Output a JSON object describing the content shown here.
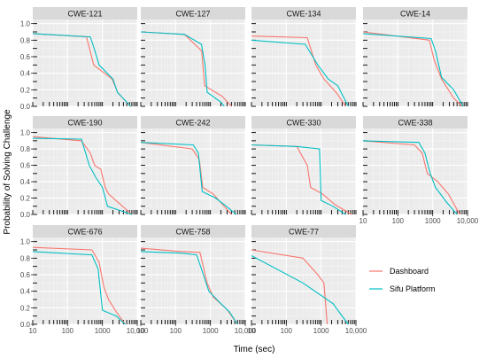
{
  "chart_data": {
    "type": "line",
    "xlabel": "Time (sec)",
    "ylabel": "Probability of Solving Challenge",
    "x_scale": "log",
    "xlim": [
      10,
      10000
    ],
    "ylim": [
      0,
      1.05
    ],
    "x_ticks": [
      "10",
      "100",
      "1000",
      "10,000"
    ],
    "y_ticks": [
      "0.0",
      "0.2",
      "0.4",
      "0.6",
      "0.8",
      "1.0"
    ],
    "grid": true,
    "legend_position": "right",
    "colors": {
      "Dashboard": "#F8766D",
      "Sifu Platform": "#00BFC4",
      "panel_bg": "#EBEBEB",
      "strip_bg": "#D9D9D9"
    },
    "series_names": [
      "Dashboard",
      "Sifu Platform"
    ],
    "panels": [
      {
        "title": "CWE-121",
        "dashboard": [
          [
            10,
            0.88
          ],
          [
            350,
            0.84
          ],
          [
            560,
            0.5
          ],
          [
            1900,
            0.33
          ],
          [
            2800,
            0.16
          ],
          [
            6500,
            0.0
          ]
        ],
        "sifu": [
          [
            10,
            0.88
          ],
          [
            450,
            0.84
          ],
          [
            600,
            0.68
          ],
          [
            800,
            0.5
          ],
          [
            2000,
            0.33
          ],
          [
            2700,
            0.17
          ],
          [
            6500,
            0.0
          ]
        ]
      },
      {
        "title": "CWE-127",
        "dashboard": [
          [
            10,
            0.9
          ],
          [
            180,
            0.87
          ],
          [
            560,
            0.67
          ],
          [
            680,
            0.25
          ],
          [
            2200,
            0.12
          ],
          [
            4000,
            0.0
          ]
        ],
        "sifu": [
          [
            10,
            0.9
          ],
          [
            180,
            0.87
          ],
          [
            550,
            0.75
          ],
          [
            700,
            0.5
          ],
          [
            800,
            0.17
          ],
          [
            2000,
            0.05
          ],
          [
            2500,
            0.0
          ]
        ]
      },
      {
        "title": "CWE-134",
        "dashboard": [
          [
            10,
            0.85
          ],
          [
            400,
            0.83
          ],
          [
            700,
            0.5
          ],
          [
            1200,
            0.33
          ],
          [
            2800,
            0.16
          ],
          [
            5000,
            0.0
          ]
        ],
        "sifu": [
          [
            10,
            0.8
          ],
          [
            350,
            0.75
          ],
          [
            800,
            0.5
          ],
          [
            1600,
            0.33
          ],
          [
            3000,
            0.25
          ],
          [
            6000,
            0.0
          ]
        ]
      },
      {
        "title": "CWE-14",
        "dashboard": [
          [
            10,
            0.9
          ],
          [
            800,
            0.8
          ],
          [
            1100,
            0.56
          ],
          [
            1800,
            0.33
          ],
          [
            4000,
            0.1
          ],
          [
            7000,
            0.0
          ]
        ],
        "sifu": [
          [
            10,
            0.88
          ],
          [
            900,
            0.82
          ],
          [
            1200,
            0.67
          ],
          [
            1800,
            0.35
          ],
          [
            4000,
            0.2
          ],
          [
            7500,
            0.0
          ]
        ]
      },
      {
        "title": "CWE-190",
        "dashboard": [
          [
            10,
            0.95
          ],
          [
            250,
            0.9
          ],
          [
            450,
            0.75
          ],
          [
            600,
            0.6
          ],
          [
            900,
            0.55
          ],
          [
            1200,
            0.33
          ],
          [
            1500,
            0.25
          ],
          [
            7000,
            0.0
          ]
        ],
        "sifu": [
          [
            10,
            0.93
          ],
          [
            250,
            0.92
          ],
          [
            330,
            0.75
          ],
          [
            420,
            0.6
          ],
          [
            650,
            0.45
          ],
          [
            1000,
            0.33
          ],
          [
            1400,
            0.1
          ],
          [
            7000,
            0.0
          ]
        ]
      },
      {
        "title": "CWE-242",
        "dashboard": [
          [
            10,
            0.88
          ],
          [
            300,
            0.8
          ],
          [
            480,
            0.67
          ],
          [
            600,
            0.33
          ],
          [
            1200,
            0.25
          ],
          [
            4000,
            0.0
          ]
        ],
        "sifu": [
          [
            10,
            0.88
          ],
          [
            320,
            0.85
          ],
          [
            450,
            0.75
          ],
          [
            580,
            0.28
          ],
          [
            1400,
            0.2
          ],
          [
            2500,
            0.12
          ],
          [
            5500,
            0.0
          ]
        ]
      },
      {
        "title": "CWE-330",
        "dashboard": [
          [
            10,
            0.85
          ],
          [
            200,
            0.83
          ],
          [
            400,
            0.6
          ],
          [
            500,
            0.33
          ],
          [
            1100,
            0.25
          ],
          [
            2500,
            0.12
          ],
          [
            7500,
            0.0
          ]
        ],
        "sifu": [
          [
            10,
            0.85
          ],
          [
            200,
            0.83
          ],
          [
            900,
            0.8
          ],
          [
            1000,
            0.17
          ],
          [
            2200,
            0.1
          ],
          [
            5000,
            0.0
          ]
        ]
      },
      {
        "title": "CWE-338",
        "dashboard": [
          [
            10,
            0.9
          ],
          [
            300,
            0.85
          ],
          [
            500,
            0.75
          ],
          [
            700,
            0.5
          ],
          [
            1400,
            0.4
          ],
          [
            2800,
            0.25
          ],
          [
            6000,
            0.0
          ]
        ],
        "sifu": [
          [
            10,
            0.9
          ],
          [
            400,
            0.88
          ],
          [
            600,
            0.75
          ],
          [
            850,
            0.5
          ],
          [
            1200,
            0.33
          ],
          [
            2500,
            0.15
          ],
          [
            5000,
            0.0
          ]
        ]
      },
      {
        "title": "CWE-676",
        "dashboard": [
          [
            10,
            0.93
          ],
          [
            500,
            0.9
          ],
          [
            800,
            0.75
          ],
          [
            1100,
            0.45
          ],
          [
            1500,
            0.3
          ],
          [
            2500,
            0.15
          ],
          [
            4500,
            0.0
          ]
        ],
        "sifu": [
          [
            10,
            0.88
          ],
          [
            500,
            0.84
          ],
          [
            750,
            0.67
          ],
          [
            1000,
            0.17
          ],
          [
            2500,
            0.1
          ],
          [
            4500,
            0.0
          ]
        ]
      },
      {
        "title": "CWE-758",
        "dashboard": [
          [
            10,
            0.92
          ],
          [
            150,
            0.88
          ],
          [
            500,
            0.87
          ],
          [
            800,
            0.5
          ],
          [
            1200,
            0.33
          ],
          [
            3000,
            0.18
          ],
          [
            6000,
            0.0
          ]
        ],
        "sifu": [
          [
            10,
            0.88
          ],
          [
            150,
            0.86
          ],
          [
            400,
            0.84
          ],
          [
            550,
            0.67
          ],
          [
            900,
            0.4
          ],
          [
            2000,
            0.25
          ],
          [
            3500,
            0.15
          ],
          [
            6000,
            0.0
          ]
        ]
      },
      {
        "title": "CWE-77",
        "dashboard": [
          [
            10,
            0.9
          ],
          [
            300,
            0.8
          ],
          [
            800,
            0.6
          ],
          [
            1200,
            0.5
          ],
          [
            1500,
            0.0
          ]
        ],
        "sifu": [
          [
            10,
            0.83
          ],
          [
            300,
            0.5
          ],
          [
            2200,
            0.25
          ],
          [
            6000,
            0.0
          ]
        ]
      }
    ]
  }
}
